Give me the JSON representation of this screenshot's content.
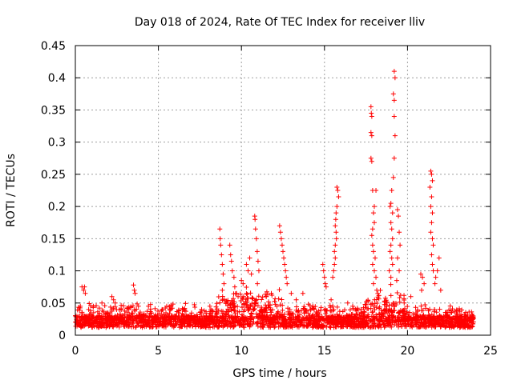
{
  "chart_data": {
    "type": "scatter",
    "title": "Day 018 of 2024, Rate Of TEC Index for receiver lliv",
    "xlabel": "GPS time / hours",
    "ylabel": "ROTI / TECUs",
    "xlim": [
      0,
      25
    ],
    "ylim": [
      0,
      0.45
    ],
    "x_ticks": [
      0,
      5,
      10,
      15,
      20,
      25
    ],
    "x_tick_labels": [
      "0",
      "5",
      "10",
      "15",
      "20",
      "25"
    ],
    "y_ticks": [
      0,
      0.05,
      0.1,
      0.15,
      0.2,
      0.25,
      0.3,
      0.35,
      0.4,
      0.45
    ],
    "y_tick_labels": [
      "0",
      "0.05",
      "0.1",
      "0.15",
      "0.2",
      "0.25",
      "0.3",
      "0.35",
      "0.4",
      "0.45"
    ],
    "grid": true,
    "marker": "+",
    "color": "#ff0000",
    "series": [
      {
        "name": "ROTI",
        "points": [
          [
            0.4,
            0.075
          ],
          [
            0.5,
            0.07
          ],
          [
            0.55,
            0.075
          ],
          [
            0.6,
            0.065
          ],
          [
            0.3,
            0.045
          ],
          [
            0.8,
            0.04
          ],
          [
            1.1,
            0.035
          ],
          [
            1.6,
            0.05
          ],
          [
            2.2,
            0.06
          ],
          [
            2.3,
            0.055
          ],
          [
            2.4,
            0.05
          ],
          [
            3.5,
            0.078
          ],
          [
            3.55,
            0.07
          ],
          [
            3.6,
            0.065
          ],
          [
            3.8,
            0.045
          ],
          [
            4.4,
            0.045
          ],
          [
            5.5,
            0.045
          ],
          [
            6.5,
            0.04
          ],
          [
            7.6,
            0.04
          ],
          [
            8.1,
            0.045
          ],
          [
            8.7,
            0.165
          ],
          [
            8.72,
            0.15
          ],
          [
            8.75,
            0.14
          ],
          [
            8.8,
            0.125
          ],
          [
            8.85,
            0.11
          ],
          [
            8.9,
            0.095
          ],
          [
            8.95,
            0.08
          ],
          [
            8.85,
            0.07
          ],
          [
            9.3,
            0.14
          ],
          [
            9.35,
            0.125
          ],
          [
            9.4,
            0.115
          ],
          [
            9.45,
            0.1
          ],
          [
            9.55,
            0.09
          ],
          [
            9.6,
            0.075
          ],
          [
            9.7,
            0.065
          ],
          [
            9.8,
            0.06
          ],
          [
            10.0,
            0.085
          ],
          [
            10.1,
            0.08
          ],
          [
            10.3,
            0.11
          ],
          [
            10.4,
            0.1
          ],
          [
            10.5,
            0.12
          ],
          [
            10.6,
            0.095
          ],
          [
            10.8,
            0.185
          ],
          [
            10.82,
            0.18
          ],
          [
            10.85,
            0.165
          ],
          [
            10.9,
            0.15
          ],
          [
            10.95,
            0.13
          ],
          [
            11.0,
            0.115
          ],
          [
            11.05,
            0.1
          ],
          [
            11.5,
            0.06
          ],
          [
            11.8,
            0.065
          ],
          [
            12.3,
            0.17
          ],
          [
            12.35,
            0.16
          ],
          [
            12.4,
            0.15
          ],
          [
            12.45,
            0.14
          ],
          [
            12.5,
            0.13
          ],
          [
            12.55,
            0.12
          ],
          [
            12.6,
            0.11
          ],
          [
            12.65,
            0.1
          ],
          [
            12.7,
            0.09
          ],
          [
            12.75,
            0.08
          ],
          [
            13.0,
            0.065
          ],
          [
            13.3,
            0.055
          ],
          [
            13.7,
            0.065
          ],
          [
            14.3,
            0.045
          ],
          [
            14.9,
            0.11
          ],
          [
            14.95,
            0.1
          ],
          [
            15.0,
            0.09
          ],
          [
            15.05,
            0.08
          ],
          [
            15.1,
            0.075
          ],
          [
            15.4,
            0.055
          ],
          [
            15.5,
            0.045
          ],
          [
            15.75,
            0.23
          ],
          [
            15.8,
            0.225
          ],
          [
            15.85,
            0.215
          ],
          [
            15.75,
            0.2
          ],
          [
            15.7,
            0.19
          ],
          [
            15.68,
            0.18
          ],
          [
            15.65,
            0.17
          ],
          [
            15.7,
            0.16
          ],
          [
            15.72,
            0.15
          ],
          [
            15.65,
            0.14
          ],
          [
            15.6,
            0.13
          ],
          [
            15.65,
            0.12
          ],
          [
            15.6,
            0.11
          ],
          [
            15.55,
            0.1
          ],
          [
            15.5,
            0.09
          ],
          [
            16.4,
            0.05
          ],
          [
            16.7,
            0.045
          ],
          [
            17.2,
            0.04
          ],
          [
            17.8,
            0.355
          ],
          [
            17.82,
            0.345
          ],
          [
            17.85,
            0.34
          ],
          [
            17.8,
            0.315
          ],
          [
            17.85,
            0.31
          ],
          [
            17.8,
            0.275
          ],
          [
            17.85,
            0.27
          ],
          [
            17.9,
            0.225
          ],
          [
            18.1,
            0.225
          ],
          [
            18.0,
            0.2
          ],
          [
            17.95,
            0.19
          ],
          [
            18.0,
            0.175
          ],
          [
            17.9,
            0.165
          ],
          [
            17.85,
            0.155
          ],
          [
            17.9,
            0.14
          ],
          [
            17.95,
            0.13
          ],
          [
            18.05,
            0.12
          ],
          [
            17.9,
            0.11
          ],
          [
            18.0,
            0.1
          ],
          [
            18.1,
            0.09
          ],
          [
            17.95,
            0.08
          ],
          [
            18.15,
            0.07
          ],
          [
            19.2,
            0.41
          ],
          [
            19.25,
            0.4
          ],
          [
            19.15,
            0.375
          ],
          [
            19.2,
            0.365
          ],
          [
            19.2,
            0.34
          ],
          [
            19.25,
            0.31
          ],
          [
            19.2,
            0.275
          ],
          [
            19.15,
            0.245
          ],
          [
            19.05,
            0.225
          ],
          [
            19.0,
            0.205
          ],
          [
            18.95,
            0.2
          ],
          [
            19.1,
            0.19
          ],
          [
            19.0,
            0.175
          ],
          [
            19.05,
            0.165
          ],
          [
            19.1,
            0.15
          ],
          [
            19.0,
            0.14
          ],
          [
            18.95,
            0.13
          ],
          [
            19.05,
            0.12
          ],
          [
            19.1,
            0.11
          ],
          [
            18.9,
            0.1
          ],
          [
            19.0,
            0.09
          ],
          [
            19.4,
            0.195
          ],
          [
            19.45,
            0.185
          ],
          [
            19.5,
            0.16
          ],
          [
            19.55,
            0.14
          ],
          [
            19.4,
            0.12
          ],
          [
            19.5,
            0.1
          ],
          [
            19.35,
            0.085
          ],
          [
            19.8,
            0.05
          ],
          [
            20.2,
            0.06
          ],
          [
            20.8,
            0.095
          ],
          [
            20.9,
            0.09
          ],
          [
            21.0,
            0.08
          ],
          [
            20.85,
            0.07
          ],
          [
            21.4,
            0.255
          ],
          [
            21.45,
            0.25
          ],
          [
            21.5,
            0.24
          ],
          [
            21.35,
            0.23
          ],
          [
            21.45,
            0.215
          ],
          [
            21.4,
            0.2
          ],
          [
            21.5,
            0.19
          ],
          [
            21.45,
            0.175
          ],
          [
            21.4,
            0.16
          ],
          [
            21.5,
            0.15
          ],
          [
            21.55,
            0.14
          ],
          [
            21.45,
            0.125
          ],
          [
            21.5,
            0.11
          ],
          [
            21.55,
            0.1
          ],
          [
            21.7,
            0.09
          ],
          [
            21.8,
            0.1
          ],
          [
            21.9,
            0.12
          ],
          [
            22.0,
            0.07
          ],
          [
            21.65,
            0.08
          ],
          [
            22.4,
            0.035
          ],
          [
            23.0,
            0.03
          ],
          [
            23.5,
            0.03
          ],
          [
            23.9,
            0.025
          ]
        ]
      }
    ]
  }
}
